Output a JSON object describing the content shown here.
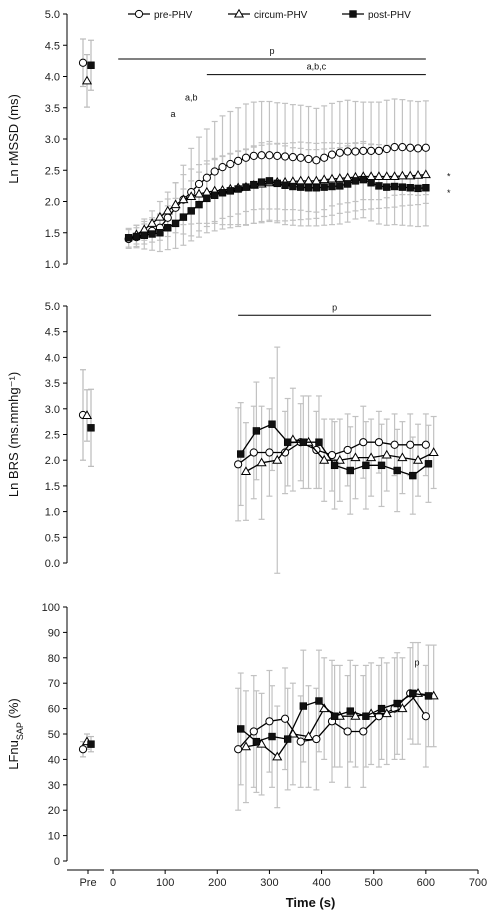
{
  "chart_data": [
    {
      "type": "line",
      "ylabel": "Ln rMSSD (ms)",
      "ylim": [
        1.0,
        5.0
      ],
      "yticks": [
        "1.0",
        "1.5",
        "2.0",
        "2.5",
        "3.0",
        "3.5",
        "4.0",
        "4.5",
        "5.0"
      ],
      "legend": [
        "pre-PHV",
        "circum-PHV",
        "post-PHV"
      ],
      "legend_position": "top",
      "pre": [
        {
          "name": "pre-PHV",
          "y": 4.22,
          "err": 0.38
        },
        {
          "name": "circum-PHV",
          "y": 3.93,
          "err": 0.42
        },
        {
          "name": "post-PHV",
          "y": 4.18,
          "err": 0.4
        }
      ],
      "series": [
        {
          "name": "pre-PHV",
          "marker": "circle-open",
          "x": [
            30,
            45,
            60,
            75,
            90,
            105,
            120,
            135,
            150,
            165,
            180,
            195,
            210,
            225,
            240,
            255,
            270,
            285,
            300,
            315,
            330,
            345,
            360,
            375,
            390,
            405,
            420,
            435,
            450,
            465,
            480,
            495,
            510,
            525,
            540,
            555,
            570,
            585,
            600
          ],
          "y": [
            1.4,
            1.43,
            1.48,
            1.53,
            1.58,
            1.74,
            1.9,
            2.03,
            2.15,
            2.28,
            2.38,
            2.48,
            2.55,
            2.6,
            2.65,
            2.7,
            2.73,
            2.74,
            2.74,
            2.73,
            2.72,
            2.71,
            2.7,
            2.68,
            2.66,
            2.7,
            2.75,
            2.78,
            2.8,
            2.8,
            2.81,
            2.81,
            2.81,
            2.84,
            2.87,
            2.87,
            2.86,
            2.85,
            2.86
          ],
          "err": [
            0.15,
            0.15,
            0.16,
            0.18,
            0.2,
            0.3,
            0.4,
            0.55,
            0.7,
            0.75,
            0.78,
            0.8,
            0.82,
            0.84,
            0.85,
            0.86,
            0.86,
            0.86,
            0.86,
            0.85,
            0.85,
            0.84,
            0.84,
            0.84,
            0.83,
            0.83,
            0.82,
            0.82,
            0.82,
            0.8,
            0.78,
            0.78,
            0.78,
            0.78,
            0.77,
            0.76,
            0.75,
            0.75,
            0.75
          ]
        },
        {
          "name": "circum-PHV",
          "marker": "triangle-open",
          "x": [
            45,
            60,
            75,
            90,
            105,
            120,
            135,
            150,
            165,
            180,
            195,
            210,
            225,
            240,
            255,
            270,
            285,
            300,
            315,
            330,
            345,
            360,
            375,
            390,
            405,
            420,
            435,
            450,
            465,
            480,
            495,
            510,
            525,
            540,
            555,
            570,
            585,
            600
          ],
          "y": [
            1.47,
            1.55,
            1.65,
            1.75,
            1.85,
            1.95,
            2.03,
            2.08,
            2.12,
            2.15,
            2.17,
            2.18,
            2.2,
            2.22,
            2.23,
            2.26,
            2.28,
            2.3,
            2.31,
            2.31,
            2.32,
            2.33,
            2.33,
            2.33,
            2.35,
            2.36,
            2.37,
            2.38,
            2.39,
            2.4,
            2.4,
            2.4,
            2.4,
            2.4,
            2.41,
            2.41,
            2.42,
            2.43
          ],
          "err": [
            0.15,
            0.17,
            0.2,
            0.25,
            0.3,
            0.35,
            0.4,
            0.44,
            0.47,
            0.5,
            0.52,
            0.55,
            0.57,
            0.59,
            0.6,
            0.61,
            0.62,
            0.62,
            0.62,
            0.62,
            0.62,
            0.62,
            0.61,
            0.6,
            0.59,
            0.58,
            0.56,
            0.55,
            0.54,
            0.53,
            0.52,
            0.51,
            0.5,
            0.49,
            0.48,
            0.47,
            0.47,
            0.46
          ]
        },
        {
          "name": "post-PHV",
          "marker": "square-filled",
          "x": [
            30,
            45,
            60,
            75,
            90,
            105,
            120,
            135,
            150,
            165,
            180,
            195,
            210,
            225,
            240,
            255,
            270,
            285,
            300,
            315,
            330,
            345,
            360,
            375,
            390,
            405,
            420,
            435,
            450,
            465,
            480,
            495,
            510,
            525,
            540,
            555,
            570,
            585,
            600
          ],
          "y": [
            1.42,
            1.44,
            1.46,
            1.48,
            1.5,
            1.58,
            1.65,
            1.75,
            1.85,
            1.95,
            2.05,
            2.1,
            2.14,
            2.17,
            2.2,
            2.23,
            2.27,
            2.31,
            2.33,
            2.29,
            2.26,
            2.24,
            2.23,
            2.22,
            2.22,
            2.23,
            2.24,
            2.25,
            2.28,
            2.33,
            2.35,
            2.3,
            2.25,
            2.23,
            2.24,
            2.23,
            2.22,
            2.21,
            2.22
          ],
          "err": [
            0.15,
            0.18,
            0.22,
            0.26,
            0.3,
            0.35,
            0.4,
            0.45,
            0.48,
            0.52,
            0.55,
            0.57,
            0.58,
            0.59,
            0.6,
            0.61,
            0.62,
            0.63,
            0.63,
            0.63,
            0.63,
            0.62,
            0.62,
            0.61,
            0.61,
            0.61,
            0.61,
            0.61,
            0.61,
            0.61,
            0.61,
            0.61,
            0.61,
            0.61,
            0.61,
            0.61,
            0.61,
            0.61,
            0.61
          ]
        }
      ],
      "annotations": [
        {
          "text": "p",
          "x_from": 10,
          "x_to": 600,
          "y": 4.28
        },
        {
          "text": "a,b,c",
          "x_from": 180,
          "x_to": 600,
          "y": 4.03
        },
        {
          "text": "a,b",
          "x": 150,
          "y": 3.62
        },
        {
          "text": "a",
          "x": 115,
          "y": 3.35
        },
        {
          "text": "*",
          "series": "circum-PHV",
          "y": 2.43
        },
        {
          "text": "*",
          "series": "post-PHV",
          "y": 2.17
        }
      ]
    },
    {
      "type": "line",
      "ylabel": "Ln BRS (ms.mmhg⁻¹)",
      "ylim": [
        0.0,
        5.0
      ],
      "yticks": [
        "0.0",
        "0.5",
        "1.0",
        "1.5",
        "2.0",
        "2.5",
        "3.0",
        "3.5",
        "4.0",
        "4.5",
        "5.0"
      ],
      "pre": [
        {
          "name": "pre-PHV",
          "y": 2.88,
          "err": 0.88
        },
        {
          "name": "circum-PHV",
          "y": 2.87,
          "err": 0.5
        },
        {
          "name": "post-PHV",
          "y": 2.63,
          "err": 0.75
        }
      ],
      "series": [
        {
          "name": "pre-PHV",
          "marker": "circle-open",
          "x": [
            240,
            270,
            300,
            330,
            360,
            390,
            420,
            450,
            480,
            510,
            540,
            570,
            600
          ],
          "y": [
            1.92,
            2.15,
            2.15,
            2.15,
            2.35,
            2.2,
            2.1,
            2.2,
            2.35,
            2.35,
            2.3,
            2.3,
            2.3
          ],
          "err": [
            1.1,
            0.9,
            0.85,
            0.8,
            0.75,
            0.75,
            0.7,
            0.7,
            0.7,
            0.6,
            0.6,
            0.6,
            0.6
          ]
        },
        {
          "name": "circum-PHV",
          "marker": "triangle-open",
          "x": [
            255,
            285,
            315,
            345,
            375,
            405,
            435,
            465,
            495,
            525,
            555,
            585,
            615
          ],
          "y": [
            1.78,
            1.95,
            2.0,
            2.4,
            2.35,
            2.0,
            2.0,
            2.05,
            2.05,
            2.1,
            2.05,
            2.0,
            2.15
          ],
          "err": [
            0.95,
            1.1,
            2.2,
            1.0,
            0.9,
            0.8,
            0.8,
            0.8,
            0.75,
            0.7,
            0.7,
            0.7,
            0.7
          ]
        },
        {
          "name": "post-PHV",
          "marker": "square-filled",
          "x": [
            245,
            275,
            305,
            335,
            365,
            395,
            425,
            455,
            485,
            515,
            545,
            575,
            605
          ],
          "y": [
            2.12,
            2.57,
            2.7,
            2.35,
            2.35,
            2.35,
            1.9,
            1.8,
            1.9,
            1.9,
            1.8,
            1.7,
            1.93
          ],
          "err": [
            1.0,
            0.95,
            0.9,
            0.85,
            0.9,
            0.9,
            0.85,
            0.85,
            0.85,
            0.8,
            0.8,
            0.75,
            0.75
          ]
        }
      ],
      "annotations": [
        {
          "text": "p",
          "x_from": 240,
          "x_to": 610,
          "y": 4.82
        }
      ]
    },
    {
      "type": "line",
      "ylabel": "LFnu",
      "ylabel_sub": "SAP",
      "ylabel_unit": " (%)",
      "ylim": [
        0,
        100
      ],
      "yticks": [
        "0",
        "10",
        "20",
        "30",
        "40",
        "50",
        "60",
        "70",
        "80",
        "90",
        "100"
      ],
      "xlabel": "Time (s)",
      "xlim": [
        -40,
        700
      ],
      "xticks": [
        "0",
        "100",
        "200",
        "300",
        "400",
        "500",
        "600",
        "700"
      ],
      "pre_tick": "Pre",
      "pre": [
        {
          "name": "pre-PHV",
          "y": 44,
          "err": 3
        },
        {
          "name": "circum-PHV",
          "y": 47,
          "err": 3
        },
        {
          "name": "post-PHV",
          "y": 46,
          "err": 3
        }
      ],
      "series": [
        {
          "name": "pre-PHV",
          "marker": "circle-open",
          "x": [
            240,
            270,
            300,
            330,
            360,
            390,
            420,
            450,
            480,
            510,
            540,
            570,
            600
          ],
          "y": [
            44,
            51,
            55,
            56,
            47,
            48,
            55,
            51,
            51,
            57,
            60,
            66,
            57
          ],
          "err": [
            24,
            22,
            20,
            20,
            18,
            20,
            24,
            22,
            22,
            20,
            20,
            18,
            20
          ]
        },
        {
          "name": "circum-PHV",
          "marker": "triangle-open",
          "x": [
            255,
            285,
            315,
            345,
            375,
            405,
            435,
            465,
            495,
            525,
            555,
            585,
            615
          ],
          "y": [
            45,
            46,
            41,
            50,
            49,
            60,
            57,
            57,
            58,
            58,
            60,
            66,
            65
          ],
          "err": [
            22,
            20,
            20,
            20,
            20,
            20,
            20,
            20,
            20,
            20,
            20,
            20,
            20
          ]
        },
        {
          "name": "post-PHV",
          "marker": "square-filled",
          "x": [
            245,
            275,
            305,
            335,
            365,
            395,
            425,
            455,
            485,
            515,
            545,
            575,
            605
          ],
          "y": [
            52,
            47,
            49,
            48,
            61,
            63,
            57,
            59,
            57,
            60,
            62,
            66,
            65
          ],
          "err": [
            22,
            20,
            20,
            20,
            22,
            20,
            20,
            20,
            20,
            20,
            20,
            20,
            20
          ]
        }
      ],
      "annotations": [
        {
          "text": "p",
          "x": 583,
          "y": 77
        }
      ]
    }
  ]
}
